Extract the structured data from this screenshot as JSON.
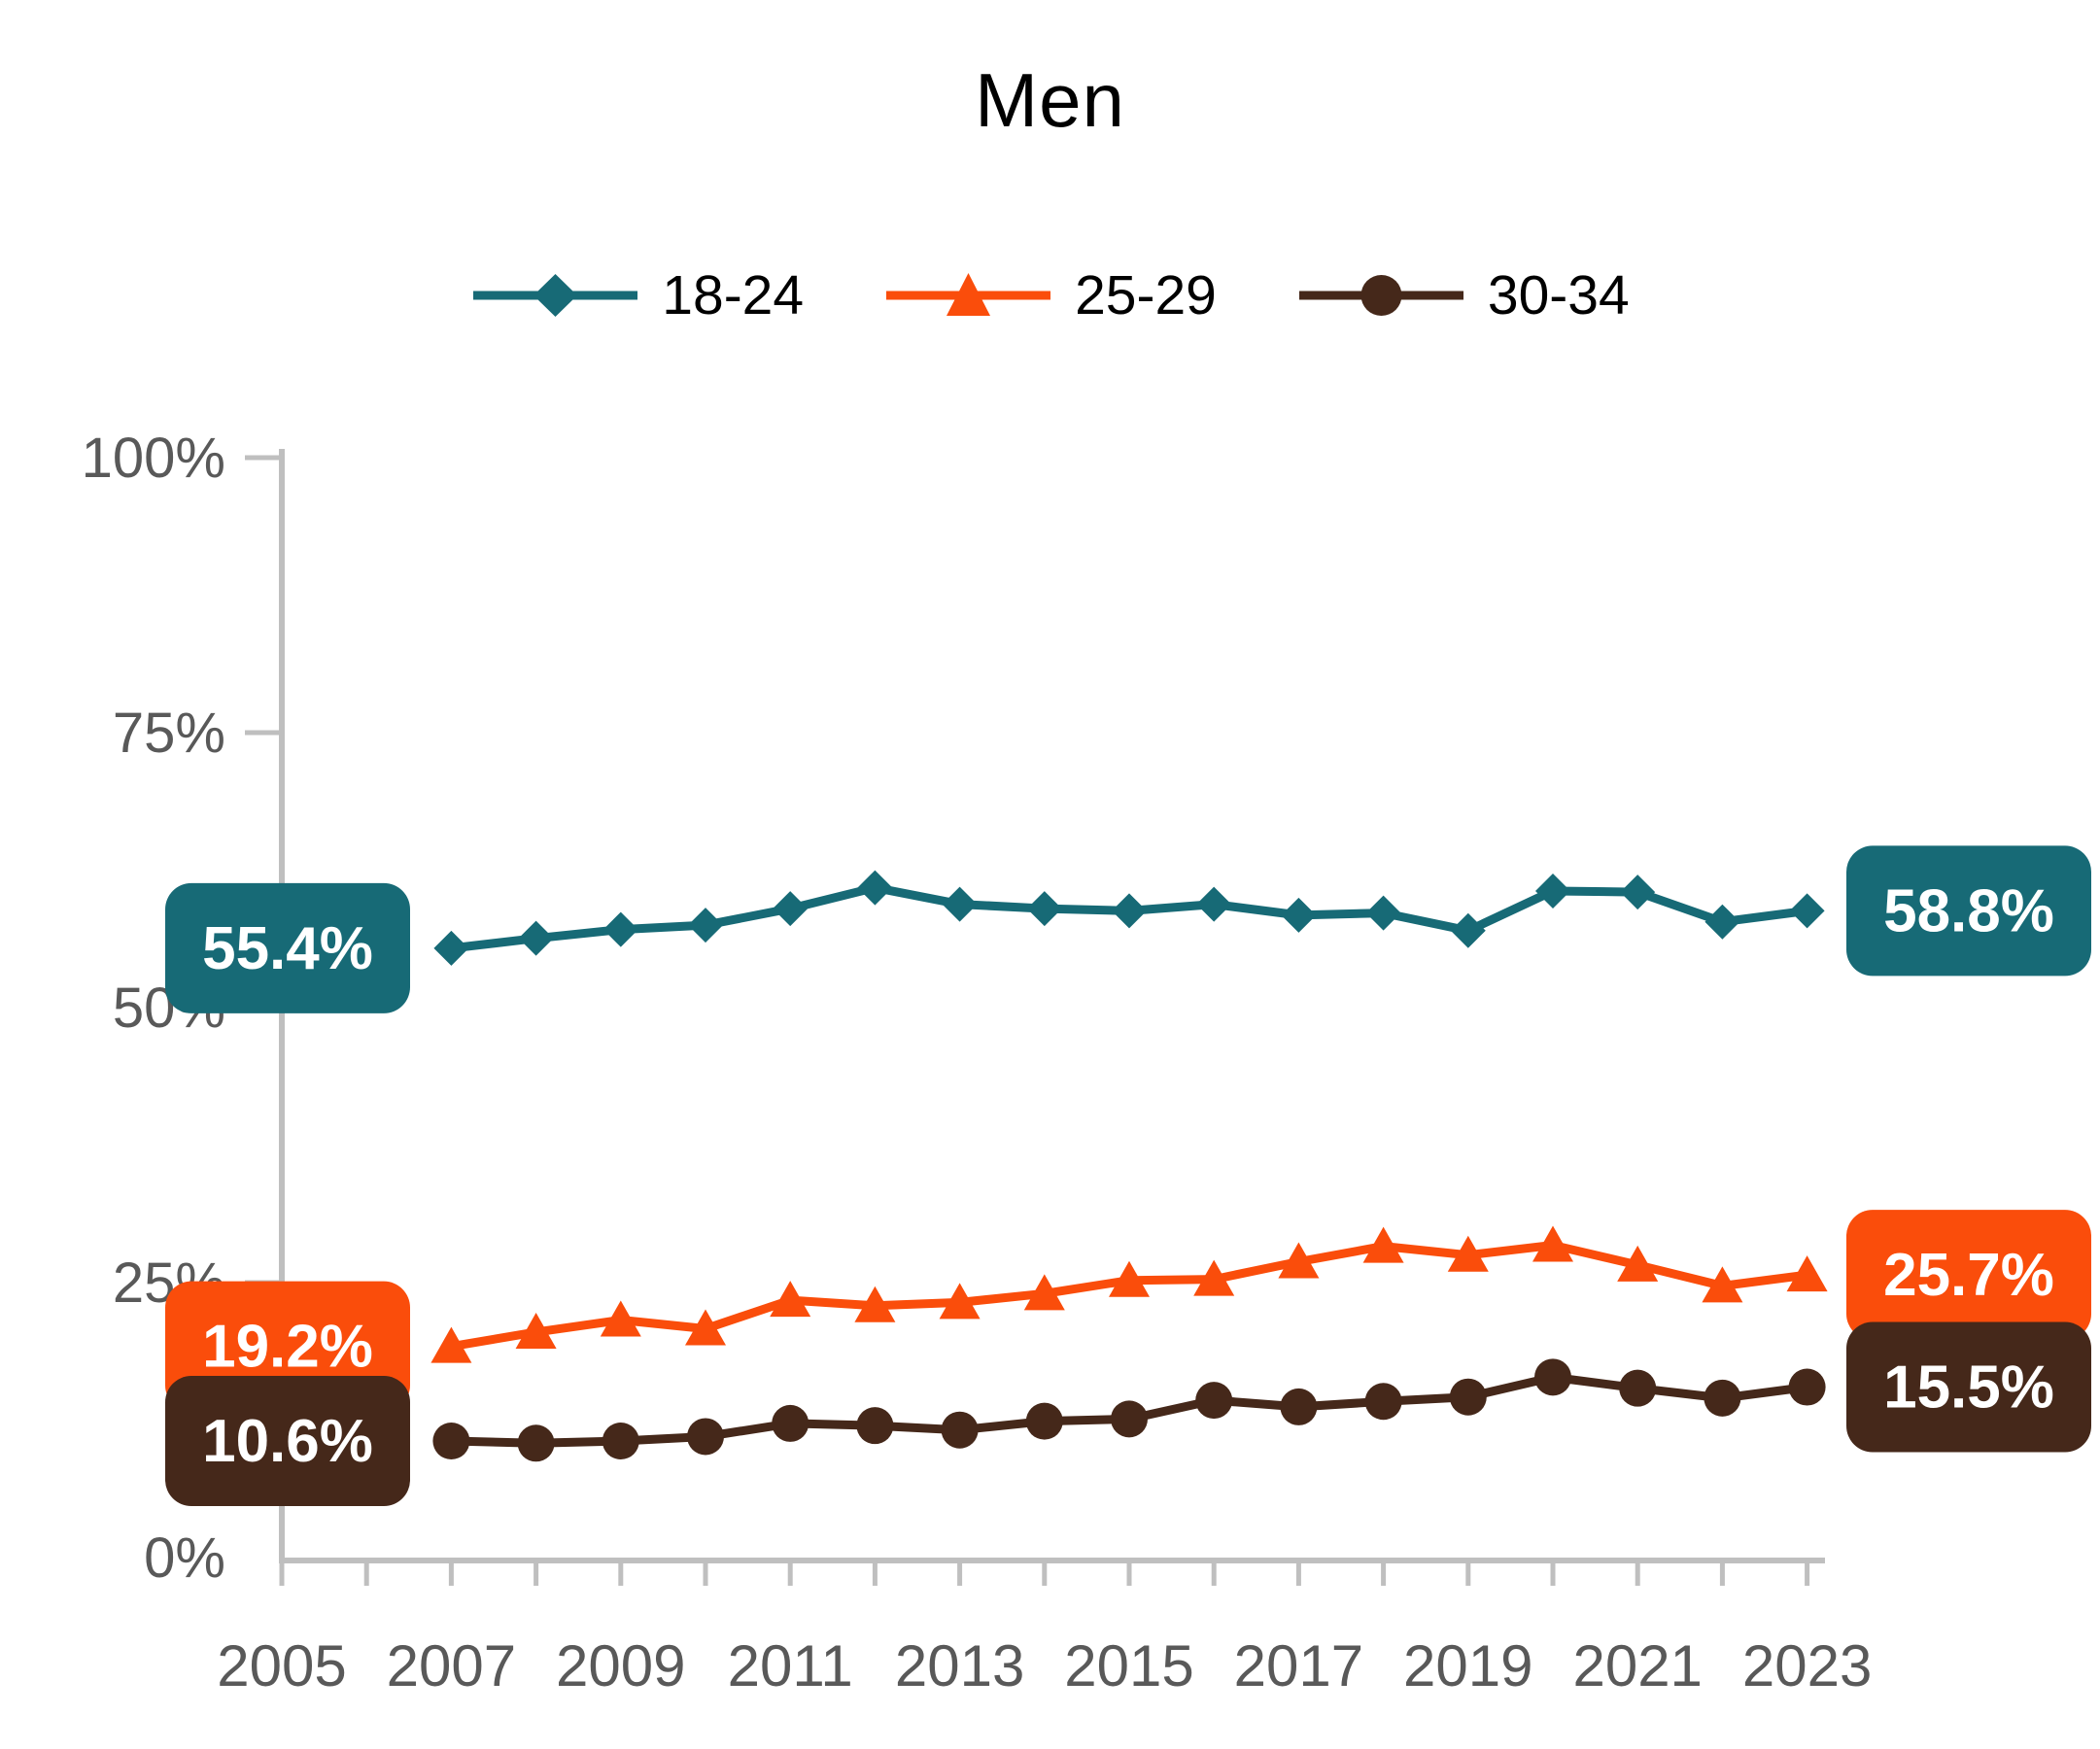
{
  "title": "Men",
  "chart_data": {
    "type": "line",
    "title": "Men",
    "x": [
      2007,
      2008,
      2009,
      2010,
      2011,
      2012,
      2013,
      2014,
      2015,
      2016,
      2017,
      2018,
      2019,
      2020,
      2021,
      2022,
      2023
    ],
    "x_axis_ticks": [
      2005,
      2006,
      2007,
      2008,
      2009,
      2010,
      2011,
      2012,
      2013,
      2014,
      2015,
      2016,
      2017,
      2018,
      2019,
      2020,
      2021,
      2022,
      2023
    ],
    "x_axis_labels": [
      "2005",
      "2007",
      "2009",
      "2011",
      "2013",
      "2015",
      "2017",
      "2019",
      "2021",
      "2023"
    ],
    "y_axis": {
      "min": 0,
      "max": 100,
      "step": 25,
      "labels": [
        "100%",
        "75%",
        "50%",
        "25%",
        "0%"
      ],
      "label_values": [
        100,
        75,
        50,
        25,
        0
      ]
    },
    "grid": false,
    "legend_position": "top",
    "series": [
      {
        "name": "18-24",
        "marker": "diamond",
        "color": "#176a76",
        "values": [
          55.4,
          56.3,
          57.1,
          57.5,
          59.0,
          60.9,
          59.4,
          59.0,
          58.8,
          59.4,
          58.4,
          58.6,
          57.0,
          60.6,
          60.5,
          57.8,
          58.8
        ],
        "start_label": "55.4%",
        "end_label": "58.8%"
      },
      {
        "name": "25-29",
        "marker": "triangle",
        "color": "#fa4d0b",
        "values": [
          19.2,
          20.5,
          21.6,
          20.8,
          23.4,
          22.9,
          23.2,
          24.0,
          25.2,
          25.3,
          26.9,
          28.3,
          27.5,
          28.4,
          26.6,
          24.7,
          25.7
        ],
        "start_label": "19.2%",
        "end_label": "25.7%"
      },
      {
        "name": "30-34",
        "marker": "circle",
        "color": "#45281a",
        "values": [
          10.6,
          10.4,
          10.6,
          11.0,
          12.2,
          12.0,
          11.6,
          12.4,
          12.6,
          14.3,
          13.7,
          14.2,
          14.6,
          16.4,
          15.4,
          14.5,
          15.5
        ],
        "start_label": "10.6%",
        "end_label": "15.5%"
      }
    ],
    "colors": {
      "axis_line": "#bfbfbf",
      "axis_label": "#595959",
      "callout_text": "#ffffff",
      "title_text": "#000000"
    }
  }
}
